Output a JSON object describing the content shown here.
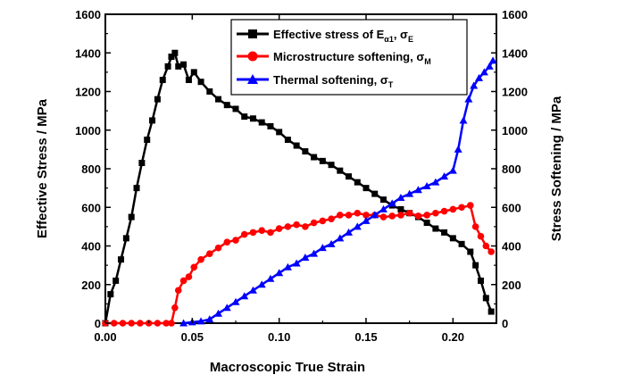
{
  "chart_data": {
    "type": "line",
    "xlabel": "Macroscopic True Strain",
    "ylabel_left": "Effective Stress / MPa",
    "ylabel_right": "Stress Softening / MPa",
    "xlim": [
      0.0,
      0.225
    ],
    "ylim_left": [
      0,
      1600
    ],
    "ylim_right": [
      0,
      1600
    ],
    "x_ticks": [
      "0.00",
      "0.05",
      "0.10",
      "0.15",
      "0.20"
    ],
    "x_tick_values": [
      0.0,
      0.05,
      0.1,
      0.15,
      0.2
    ],
    "y_ticks": [
      "0",
      "200",
      "400",
      "600",
      "800",
      "1000",
      "1200",
      "1400",
      "1600"
    ],
    "y_tick_values": [
      0,
      200,
      400,
      600,
      800,
      1000,
      1200,
      1400,
      1600
    ],
    "legend_position": "top-right",
    "grid": false,
    "series": [
      {
        "name": "Effective stress of Eα1, σE",
        "label_main": "Effective stress of E",
        "label_sub1": "α1",
        "label_mid": ", σ",
        "label_sub2": "E",
        "color": "#000000",
        "marker": "square",
        "axis": "left",
        "x": [
          0.0,
          0.003,
          0.006,
          0.009,
          0.012,
          0.015,
          0.018,
          0.021,
          0.024,
          0.027,
          0.03,
          0.033,
          0.036,
          0.038,
          0.04,
          0.042,
          0.045,
          0.048,
          0.051,
          0.055,
          0.06,
          0.065,
          0.07,
          0.075,
          0.08,
          0.085,
          0.09,
          0.095,
          0.1,
          0.105,
          0.11,
          0.115,
          0.12,
          0.125,
          0.13,
          0.135,
          0.14,
          0.145,
          0.15,
          0.155,
          0.16,
          0.165,
          0.17,
          0.175,
          0.18,
          0.185,
          0.19,
          0.195,
          0.2,
          0.205,
          0.21,
          0.213,
          0.216,
          0.219,
          0.222
        ],
        "values": [
          0,
          150,
          220,
          330,
          440,
          550,
          700,
          830,
          950,
          1050,
          1160,
          1260,
          1330,
          1380,
          1400,
          1330,
          1340,
          1260,
          1300,
          1250,
          1200,
          1160,
          1130,
          1110,
          1070,
          1060,
          1040,
          1020,
          990,
          950,
          920,
          890,
          860,
          840,
          820,
          790,
          760,
          730,
          700,
          670,
          640,
          610,
          590,
          570,
          550,
          520,
          490,
          470,
          440,
          410,
          370,
          300,
          220,
          130,
          60
        ]
      },
      {
        "name": "Microstructure softening, σM",
        "label_main": "Microstructure softening, σ",
        "label_sub": "M",
        "color": "#ff0000",
        "marker": "circle",
        "axis": "right",
        "x": [
          0.0,
          0.005,
          0.01,
          0.015,
          0.02,
          0.025,
          0.03,
          0.035,
          0.038,
          0.04,
          0.042,
          0.045,
          0.048,
          0.051,
          0.055,
          0.06,
          0.065,
          0.07,
          0.075,
          0.08,
          0.085,
          0.09,
          0.095,
          0.1,
          0.105,
          0.11,
          0.115,
          0.12,
          0.125,
          0.13,
          0.135,
          0.14,
          0.145,
          0.15,
          0.155,
          0.16,
          0.165,
          0.17,
          0.175,
          0.18,
          0.185,
          0.19,
          0.195,
          0.2,
          0.205,
          0.21,
          0.213,
          0.216,
          0.219,
          0.222
        ],
        "values": [
          0,
          0,
          0,
          0,
          0,
          0,
          0,
          0,
          0,
          80,
          170,
          220,
          240,
          290,
          330,
          360,
          390,
          420,
          430,
          460,
          470,
          480,
          470,
          490,
          500,
          510,
          500,
          520,
          530,
          540,
          560,
          560,
          570,
          560,
          560,
          550,
          555,
          560,
          570,
          555,
          560,
          570,
          580,
          590,
          600,
          610,
          500,
          450,
          400,
          370
        ]
      },
      {
        "name": "Thermal softening, σT",
        "label_main": "Thermal softening, σ",
        "label_sub": "T",
        "color": "#0000ff",
        "marker": "triangle",
        "axis": "right",
        "x": [
          0.045,
          0.05,
          0.055,
          0.06,
          0.065,
          0.07,
          0.075,
          0.08,
          0.085,
          0.09,
          0.095,
          0.1,
          0.105,
          0.11,
          0.115,
          0.12,
          0.125,
          0.13,
          0.135,
          0.14,
          0.145,
          0.15,
          0.155,
          0.16,
          0.165,
          0.17,
          0.175,
          0.18,
          0.185,
          0.19,
          0.195,
          0.2,
          0.203,
          0.206,
          0.209,
          0.212,
          0.215,
          0.218,
          0.221,
          0.223
        ],
        "values": [
          0,
          5,
          10,
          20,
          50,
          80,
          110,
          140,
          170,
          200,
          230,
          260,
          290,
          310,
          340,
          360,
          390,
          410,
          440,
          470,
          500,
          530,
          560,
          590,
          620,
          650,
          670,
          690,
          710,
          730,
          760,
          790,
          900,
          1050,
          1160,
          1230,
          1270,
          1300,
          1330,
          1360
        ]
      }
    ]
  }
}
